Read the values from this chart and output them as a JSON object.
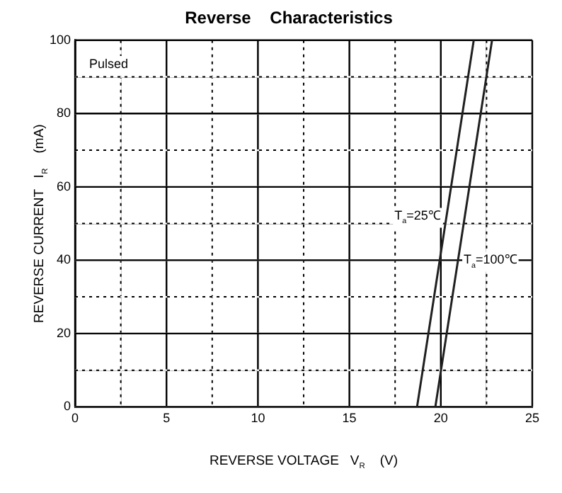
{
  "chart_data": {
    "type": "line",
    "title": "Reverse    Characteristics",
    "xlabel": "REVERSE VOLTAGE   V$_{R}$    (V)",
    "ylabel": "REVERSE CURRENT   I$_{R}$    (mA)",
    "annotations": [
      "Pulsed"
    ],
    "series": [
      {
        "name": "T$_{a}$=25℃",
        "color": "#202020",
        "x": [
          8.5,
          18.7,
          21.8
        ],
        "values": [
          0,
          0,
          100
        ]
      },
      {
        "name": "T$_{a}$=100℃",
        "color": "#202020",
        "x": [
          8.5,
          19.7,
          22.8
        ],
        "values": [
          0,
          0,
          100
        ]
      }
    ],
    "xlim": [
      0,
      25
    ],
    "ylim": [
      0,
      100
    ],
    "xticks": [
      0,
      {
        "value": 2.5,
        "label": null
      },
      5,
      {
        "value": 7.5,
        "label": null
      },
      10,
      {
        "value": 12.5,
        "label": null
      },
      15,
      {
        "value": 17.5,
        "label": null
      },
      20,
      {
        "value": 22.5,
        "label": null
      },
      25
    ],
    "yticks": [
      0,
      {
        "value": 10,
        "label": null
      },
      20,
      {
        "value": 30,
        "label": null
      },
      40,
      {
        "value": 50,
        "label": null
      },
      60,
      {
        "value": 70,
        "label": null
      },
      80,
      {
        "value": 90,
        "label": null
      },
      100
    ],
    "grid": true,
    "legend": false,
    "marker": "none",
    "line_style": "solid"
  }
}
